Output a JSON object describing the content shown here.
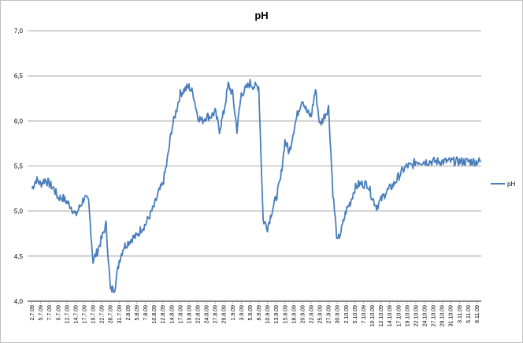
{
  "chart_data": {
    "type": "line",
    "title": "pH",
    "xlabel": "",
    "ylabel": "",
    "ylim": [
      4.0,
      7.0
    ],
    "y_ticks": [
      "4,0",
      "4,5",
      "5,0",
      "5,5",
      "6,0",
      "6,5",
      "7,0"
    ],
    "x_tick_labels": [
      "2.7.09",
      "5.7.09",
      "7.7.09",
      "9.7.09",
      "12.7.09",
      "14.7.09",
      "17.7.09",
      "19.7.09",
      "22.7.09",
      "28.7.09",
      "31.7.09",
      "2.8.09",
      "5.8.09",
      "7.8.09",
      "10.8.09",
      "12.8.09",
      "14.8.09",
      "17.8.09",
      "19.8.09",
      "22.8.09",
      "24.8.09",
      "27.8.09",
      "29.8.09",
      "1.9.09",
      "3.9.09",
      "5.9.09",
      "8.9.09",
      "10.9.09",
      "13.9.09",
      "15.9.09",
      "18.9.09",
      "20.9.09",
      "22.9.09",
      "25.9.09",
      "27.9.09",
      "30.9.09",
      "2.10.09",
      "5.10.09",
      "7.10.09",
      "10.10.09",
      "12.10.09",
      "14.10.09",
      "17.10.09",
      "19.10.09",
      "22.10.09",
      "24.10.09",
      "27.10.09",
      "29.10.09",
      "31.10.09",
      "3.11.09",
      "5.11.09",
      "8.11.09"
    ],
    "grid": true,
    "legend_position": "right",
    "series": [
      {
        "name": "pH",
        "color": "#4a7ebb",
        "x": [
          0,
          0.5,
          1,
          1.5,
          2,
          2.5,
          3,
          3.5,
          4,
          4.5,
          5,
          5.5,
          6,
          6.5,
          7,
          7.5,
          8,
          8.5,
          9,
          9.5,
          10,
          10.5,
          11,
          11.5,
          12,
          12.5,
          13,
          13.5,
          14,
          14.5,
          15,
          15.5,
          16,
          16.5,
          17,
          17.5,
          18,
          18.5,
          19,
          19.5,
          20,
          20.5,
          21,
          21.5,
          22,
          22.5,
          23,
          23.5,
          24,
          24.5,
          25,
          25.5,
          26,
          26.5,
          27,
          27.5,
          28,
          28.5,
          29,
          29.5,
          30,
          30.5,
          31,
          31.5,
          32,
          32.5,
          33,
          33.5,
          34,
          34.5,
          35,
          35.5,
          36,
          36.5,
          37,
          37.5,
          38,
          38.5,
          39,
          39.5,
          40,
          40.5,
          41,
          41.5,
          42,
          42.5,
          43,
          43.5,
          44,
          44.5,
          45,
          45.5,
          46,
          46.5,
          47,
          47.5,
          48,
          48.5,
          49,
          49.5,
          50,
          50.5,
          51,
          51.5
        ],
        "values": [
          5.25,
          5.35,
          5.3,
          5.35,
          5.3,
          5.25,
          5.15,
          5.15,
          5.1,
          5.05,
          4.95,
          5.05,
          5.15,
          5.1,
          4.45,
          4.55,
          4.7,
          4.85,
          4.12,
          4.15,
          4.45,
          4.6,
          4.65,
          4.7,
          4.72,
          4.8,
          4.85,
          4.95,
          5.05,
          5.2,
          5.3,
          5.55,
          5.9,
          6.1,
          6.3,
          6.35,
          6.38,
          6.3,
          6.05,
          6.0,
          6.05,
          6.05,
          6.1,
          5.9,
          6.1,
          6.4,
          6.3,
          5.9,
          6.3,
          6.35,
          6.42,
          6.38,
          6.38,
          4.9,
          4.82,
          5.0,
          5.15,
          5.35,
          5.78,
          5.65,
          5.9,
          6.1,
          6.25,
          6.1,
          6.05,
          6.35,
          5.95,
          6.05,
          6.15,
          5.2,
          4.65,
          4.8,
          5.0,
          5.1,
          5.25,
          5.3,
          5.3,
          5.3,
          5.15,
          5.05,
          5.12,
          5.2,
          5.25,
          5.3,
          5.38,
          5.45,
          5.5,
          5.5,
          5.55,
          5.55,
          5.55,
          5.55,
          5.55,
          5.55,
          5.55,
          5.55,
          5.55,
          5.55,
          5.55,
          5.55,
          5.55,
          5.55,
          5.55,
          5.55
        ]
      }
    ]
  }
}
